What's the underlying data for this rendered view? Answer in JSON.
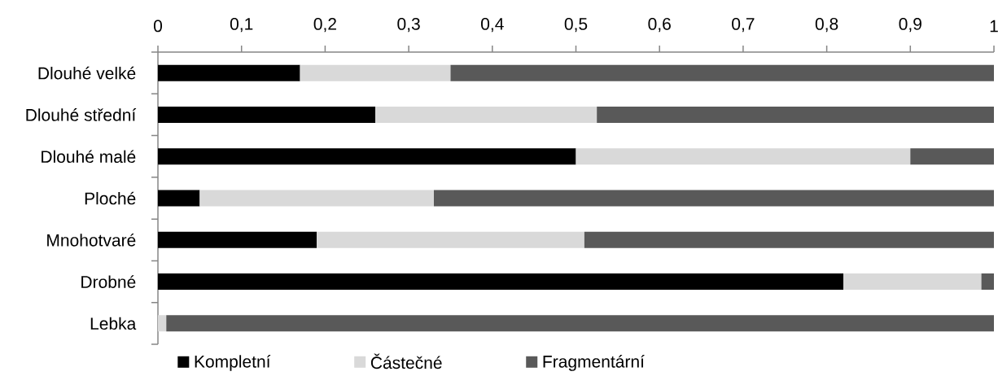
{
  "chart_data": {
    "type": "bar",
    "orientation": "horizontal",
    "stacked": true,
    "categories": [
      "Dlouhé velké",
      "Dlouhé střední",
      "Dlouhé malé",
      "Ploché",
      "Mnohotvaré",
      "Drobné",
      "Lebka"
    ],
    "series": [
      {
        "name": "Kompletní",
        "color": "#000000",
        "values": [
          0.17,
          0.26,
          0.5,
          0.05,
          0.19,
          0.82,
          0
        ]
      },
      {
        "name": "Částečné",
        "color": "#d9d9d9",
        "values": [
          0.18,
          0.265,
          0.4,
          0.28,
          0.32,
          0.165,
          0.01
        ]
      },
      {
        "name": "Fragmentární",
        "color": "#595959",
        "values": [
          0.65,
          0.475,
          0.1,
          0.67,
          0.49,
          0.015,
          0.99
        ]
      }
    ],
    "xlim": [
      0,
      1
    ],
    "xticks": [
      0,
      {
        "value": 0.1,
        "label": "0,1"
      },
      {
        "value": 0.2,
        "label": "0,2"
      },
      {
        "value": 0.3,
        "label": "0,3"
      },
      {
        "value": 0.4,
        "label": "0,4"
      },
      {
        "value": 0.5,
        "label": "0,5"
      },
      {
        "value": 0.6,
        "label": "0,6"
      },
      {
        "value": 0.7,
        "label": "0,7"
      },
      {
        "value": 0.8,
        "label": "0,8"
      },
      {
        "value": 0.9,
        "label": "0,9"
      },
      1
    ],
    "legend": "bottom"
  }
}
